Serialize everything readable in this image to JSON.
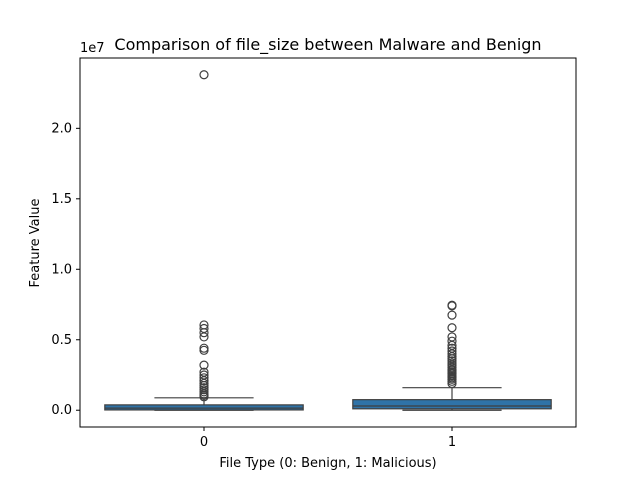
{
  "chart_data": {
    "type": "box",
    "title": "Comparison of file_size between Malware and Benign",
    "xlabel": "File Type (0: Benign, 1: Malicious)",
    "ylabel": "Feature Value",
    "offset_text": "1e7",
    "categories": [
      "0",
      "1"
    ],
    "ylim": [
      -1190000,
      24990000
    ],
    "yticks": [
      0,
      5000000,
      10000000,
      15000000,
      20000000
    ],
    "ytick_labels": [
      "0.0",
      "0.5",
      "1.0",
      "1.5",
      "2.0"
    ],
    "grid": false,
    "color": "#2f73a8",
    "boxes": [
      {
        "category": "0",
        "whisker_low": 0,
        "q1": 20000,
        "median": 150000,
        "q3": 380000,
        "whisker_high": 880000,
        "outliers": [
          23800000,
          6050000,
          5800000,
          5500000,
          5200000,
          4400000,
          4250000,
          3200000,
          2700000,
          2500000,
          2300000,
          2100000,
          1900000,
          1750000,
          1600000,
          1450000,
          1300000,
          1150000,
          1050000,
          950000
        ]
      },
      {
        "category": "1",
        "whisker_low": 0,
        "q1": 100000,
        "median": 300000,
        "q3": 750000,
        "whisker_high": 1600000,
        "outliers": [
          7450000,
          7400000,
          6750000,
          5850000,
          5200000,
          4900000,
          4600000,
          4400000,
          4200000,
          4000000,
          3800000,
          3650000,
          3500000,
          3350000,
          3200000,
          3050000,
          2900000,
          2800000,
          2700000,
          2600000,
          2500000,
          2400000,
          2300000,
          2200000,
          2050000,
          1900000
        ]
      }
    ]
  }
}
